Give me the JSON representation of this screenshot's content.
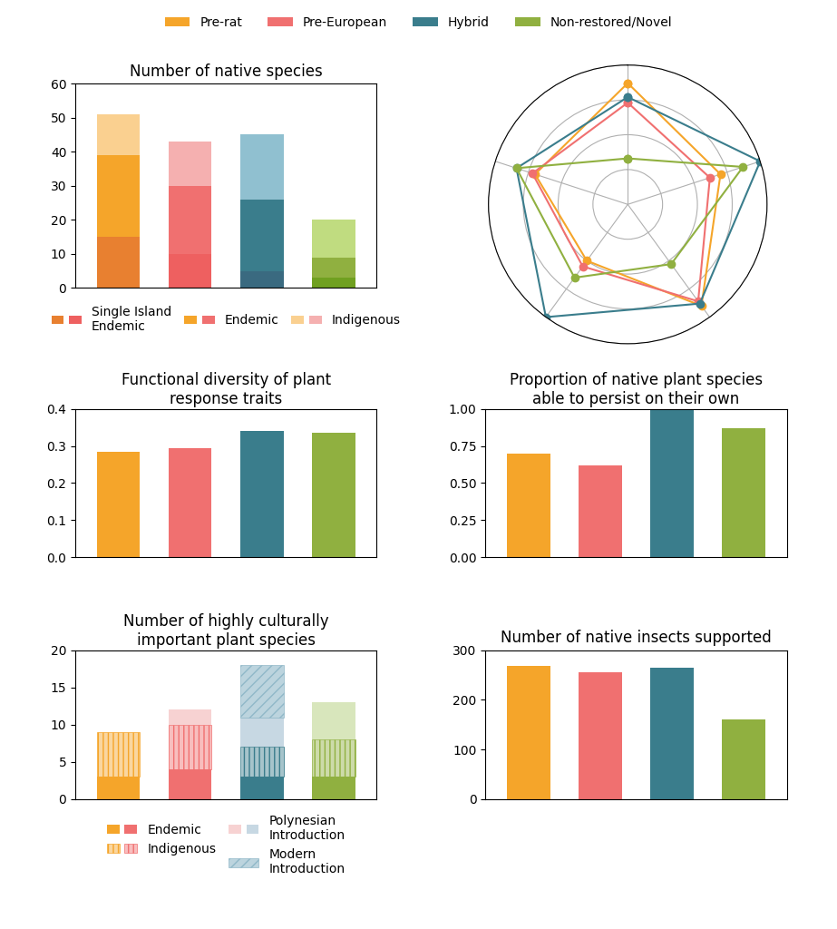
{
  "chart_data": [
    {
      "type": "bar",
      "stacked": true,
      "title": "Number of native species",
      "categories": [
        null,
        null,
        null,
        null
      ],
      "tick_labels": "y",
      "ylim": [
        0,
        60
      ],
      "yticks": [
        0,
        10,
        20,
        30,
        40,
        50,
        60
      ],
      "grid": false,
      "legend": "upper center",
      "series": [
        {
          "name": "Single Island\nEndemic",
          "colors": [
            "#E88030",
            "#EE6060",
            "#3A6A80",
            "#70A020"
          ],
          "values": [
            15,
            10,
            5,
            3
          ]
        },
        {
          "name": "Endemic",
          "colors": [
            "#F5A52A",
            "#F07070",
            "#3A7D8C",
            "#90B040"
          ],
          "values": [
            24,
            20,
            21,
            6
          ]
        },
        {
          "name": "Indigenous",
          "colors": [
            "#FAD090",
            "#F5B0B0",
            "#90C0D0",
            "#C0DC80"
          ],
          "values": [
            12,
            13,
            19,
            11
          ]
        }
      ]
    },
    {
      "type": "radar",
      "categories": [
        null,
        null,
        null,
        null,
        null
      ],
      "tick_labels": false,
      "ylim": [
        0,
        1.0
      ],
      "yticks": [
        0.25,
        0.5,
        0.75,
        1.0
      ],
      "grid": true,
      "legend": "upper center",
      "marker": "o",
      "series": [
        {
          "name": "Pre-rat",
          "color": "#F5A52A",
          "values": [
            0.87,
            0.7,
            0.9,
            0.5,
            0.7
          ]
        },
        {
          "name": "Pre-European",
          "color": "#F07070",
          "values": [
            0.73,
            0.62,
            0.86,
            0.55,
            0.72
          ]
        },
        {
          "name": "Hybrid",
          "color": "#3A7D8C",
          "values": [
            0.77,
            1.0,
            0.88,
            1.0,
            0.84
          ]
        },
        {
          "name": "Non-restored/Novel",
          "color": "#90B040",
          "values": [
            0.33,
            0.87,
            0.53,
            0.65,
            0.84
          ]
        }
      ]
    },
    {
      "type": "bar",
      "title": "Functional diversity of plant\nresponse traits",
      "categories": [
        null,
        null,
        null,
        null
      ],
      "tick_labels": "y",
      "values": [
        0.285,
        0.293,
        0.34,
        0.335
      ],
      "colors": [
        "#F5A52A",
        "#F07070",
        "#3A7D8C",
        "#90B040"
      ],
      "ylim": [
        0.0,
        0.4
      ],
      "yticks": [
        0.0,
        0.1,
        0.2,
        0.3,
        0.4
      ],
      "grid": false
    },
    {
      "type": "bar",
      "title": "Proportion of native plant species\nable to persist on their own",
      "categories": [
        null,
        null,
        null,
        null
      ],
      "tick_labels": "y",
      "values": [
        0.7,
        0.62,
        1.0,
        0.87
      ],
      "colors": [
        "#F5A52A",
        "#F07070",
        "#3A7D8C",
        "#90B040"
      ],
      "ylim": [
        0.0,
        1.0
      ],
      "yticks": [
        {
          "value": 0.0,
          "label": "0.00"
        },
        0.25,
        {
          "value": 0.5,
          "label": "0.50"
        },
        0.75,
        {
          "value": 1.0,
          "label": "1.00"
        }
      ],
      "grid": false
    },
    {
      "type": "bar",
      "stacked": true,
      "title": "Number of highly culturally\nimportant plant species",
      "categories": [
        null,
        null,
        null,
        null
      ],
      "tick_labels": "y",
      "ylim": [
        0,
        20
      ],
      "yticks": [
        0,
        5,
        10,
        15,
        20
      ],
      "grid": false,
      "legend": "upper center",
      "series": [
        {
          "name": "Endemic",
          "colors": [
            "#F5A52A",
            "#F07070",
            "#3A7D8C",
            "#90B040"
          ],
          "values": [
            3,
            4,
            3,
            3
          ]
        },
        {
          "name": "Indigenous",
          "colors": [
            "#F5A52A",
            "#F07070",
            "#3A7D8C",
            "#90B040"
          ],
          "values": [
            6,
            6,
            4,
            5
          ]
        },
        {
          "name": "Polynesian\nIntroduction",
          "colors": [
            "#F5C0C0",
            "#F5C0C0",
            "#B0C8D8",
            "#C8DCA0"
          ],
          "values": [
            0,
            2,
            4,
            5
          ]
        },
        {
          "name": "Modern\nIntroduction",
          "colors": [
            "#90B8C8",
            "#90B8C8",
            "#90B8C8",
            "#90B8C8"
          ],
          "values": [
            0,
            0,
            7,
            0
          ]
        }
      ]
    },
    {
      "type": "bar",
      "title": "Number of native insects supported",
      "categories": [
        null,
        null,
        null,
        null
      ],
      "tick_labels": "y",
      "values": [
        268,
        256,
        264,
        160
      ],
      "colors": [
        "#F5A52A",
        "#F07070",
        "#3A7D8C",
        "#90B040"
      ],
      "ylim": [
        0,
        300
      ],
      "yticks": [
        0,
        100,
        200,
        300
      ],
      "grid": false
    }
  ]
}
